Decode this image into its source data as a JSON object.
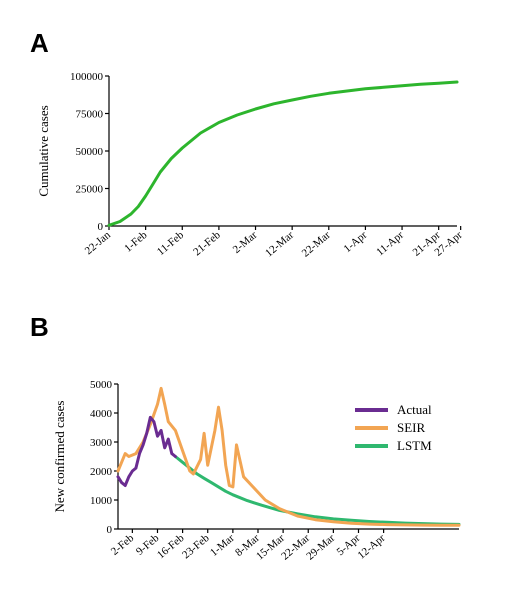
{
  "chart_data": [
    {
      "panel_label": "A",
      "type": "line",
      "xlabel": "",
      "ylabel": "Cumulative cases",
      "ylim": [
        0,
        100000
      ],
      "yticks": [
        "0",
        "25000",
        "50000",
        "75000",
        "100000"
      ],
      "xlim_days": [
        0,
        95
      ],
      "xticks": [
        {
          "label": "22-Jan",
          "day": 0
        },
        {
          "label": "1-Feb",
          "day": 10
        },
        {
          "label": "11-Feb",
          "day": 20
        },
        {
          "label": "21-Feb",
          "day": 30
        },
        {
          "label": "2-Mar",
          "day": 40
        },
        {
          "label": "12-Mar",
          "day": 50
        },
        {
          "label": "22-Mar",
          "day": 60
        },
        {
          "label": "1-Apr",
          "day": 70
        },
        {
          "label": "11-Apr",
          "day": 80
        },
        {
          "label": "21-Apr",
          "day": 90
        },
        {
          "label": "27-Apr",
          "day": 96
        }
      ],
      "series": [
        {
          "name": "",
          "color": "#2db52d",
          "x": [
            0,
            3,
            6,
            8,
            10,
            12,
            14,
            17,
            20,
            25,
            30,
            35,
            40,
            45,
            50,
            55,
            60,
            65,
            70,
            75,
            80,
            85,
            90,
            95
          ],
          "y": [
            500,
            3000,
            8000,
            13000,
            20000,
            28000,
            36000,
            45000,
            52000,
            62000,
            69000,
            74000,
            78000,
            81500,
            84000,
            86500,
            88500,
            90000,
            91500,
            92500,
            93500,
            94500,
            95200,
            96000
          ]
        }
      ]
    },
    {
      "panel_label": "B",
      "type": "line",
      "xlabel": "",
      "ylabel": "New confirmed cases",
      "ylim": [
        0,
        5000
      ],
      "yticks": [
        "0",
        "1000",
        "2000",
        "3000",
        "4000",
        "5000"
      ],
      "xlim_days": [
        0,
        95
      ],
      "xticks": [
        {
          "label": "2-Feb",
          "day": 4
        },
        {
          "label": "9-Feb",
          "day": 11
        },
        {
          "label": "16-Feb",
          "day": 18
        },
        {
          "label": "23-Feb",
          "day": 25
        },
        {
          "label": "1-Mar",
          "day": 32
        },
        {
          "label": "8-Mar",
          "day": 39
        },
        {
          "label": "15-Mar",
          "day": 46
        },
        {
          "label": "22-Mar",
          "day": 53
        },
        {
          "label": "29-Mar",
          "day": 60
        },
        {
          "label": "5-Apr",
          "day": 67
        },
        {
          "label": "12-Apr",
          "day": 74
        }
      ],
      "legend_position": "right",
      "series": [
        {
          "name": "LSTM",
          "color": "#2fb86f",
          "x": [
            16,
            18,
            20,
            22,
            24,
            26,
            28,
            30,
            32,
            34,
            36,
            38,
            40,
            42,
            45,
            50,
            55,
            60,
            65,
            70,
            75,
            80,
            85,
            90,
            95
          ],
          "y": [
            2500,
            2300,
            2100,
            1900,
            1750,
            1600,
            1450,
            1300,
            1180,
            1080,
            980,
            900,
            820,
            750,
            640,
            520,
            420,
            350,
            300,
            260,
            230,
            205,
            185,
            170,
            160
          ]
        },
        {
          "name": "SEIR",
          "color": "#f2a553",
          "x": [
            0,
            1,
            2,
            3,
            5,
            7,
            9,
            11,
            12,
            13,
            14,
            16,
            18,
            20,
            21,
            23,
            24,
            25,
            26,
            27,
            28,
            29,
            30,
            31,
            32,
            33,
            35,
            38,
            41,
            45,
            50,
            55,
            60,
            65,
            70,
            75,
            80,
            85,
            90,
            95
          ],
          "y": [
            2000,
            2300,
            2600,
            2500,
            2600,
            3000,
            3600,
            4300,
            4850,
            4300,
            3700,
            3400,
            2700,
            2000,
            1900,
            2400,
            3300,
            2200,
            2800,
            3400,
            4200,
            3400,
            2200,
            1500,
            1450,
            2900,
            1800,
            1400,
            1000,
            700,
            450,
            320,
            250,
            200,
            170,
            150,
            140,
            135,
            130,
            130
          ]
        },
        {
          "name": "Actual",
          "color": "#6a2c91",
          "x": [
            0,
            1,
            2,
            3,
            4,
            5,
            6,
            7,
            8,
            9,
            10,
            11,
            12,
            13,
            14,
            15,
            16
          ],
          "y": [
            1800,
            1600,
            1500,
            1800,
            2000,
            2100,
            2600,
            2900,
            3300,
            3850,
            3700,
            3200,
            3400,
            2800,
            3100,
            2600,
            2500
          ]
        }
      ]
    }
  ]
}
